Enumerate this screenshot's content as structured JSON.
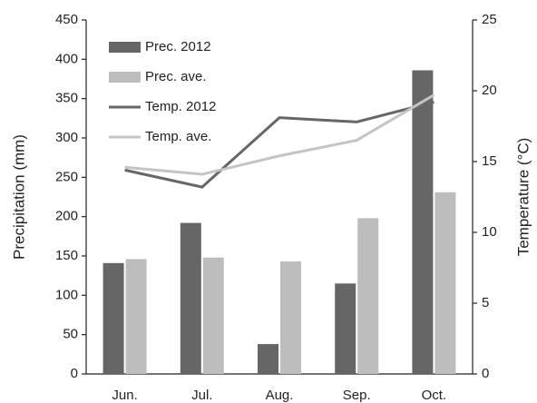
{
  "chart_data": {
    "type": "bar",
    "categories": [
      "Jun.",
      "Jul.",
      "Aug.",
      "Sep.",
      "Oct."
    ],
    "ylabel": "Precipitation (mm)",
    "y2label": "Temperature (°C)",
    "ylim": [
      0,
      450
    ],
    "yticks": [
      0,
      50,
      100,
      150,
      200,
      250,
      300,
      350,
      400,
      450
    ],
    "y2lim": [
      0,
      25
    ],
    "y2ticks": [
      0,
      5,
      10,
      15,
      20,
      25
    ],
    "legend": "upper left",
    "series": [
      {
        "name": "Prec. 2012",
        "type": "bar",
        "color": "#666666",
        "values": [
          141,
          192,
          38,
          115,
          386
        ]
      },
      {
        "name": "Prec. ave.",
        "type": "bar",
        "color": "#bdbdbd",
        "values": [
          146,
          148,
          143,
          198,
          231
        ]
      },
      {
        "name": "Temp. 2012",
        "type": "line",
        "axis": "y2",
        "color": "#666666",
        "values": [
          14.4,
          13.2,
          18.1,
          17.8,
          19.2
        ]
      },
      {
        "name": "Temp. ave.",
        "type": "line",
        "axis": "y2",
        "color": "#c4c4c4",
        "values": [
          14.6,
          14.1,
          15.4,
          16.5,
          19.7
        ]
      }
    ]
  }
}
